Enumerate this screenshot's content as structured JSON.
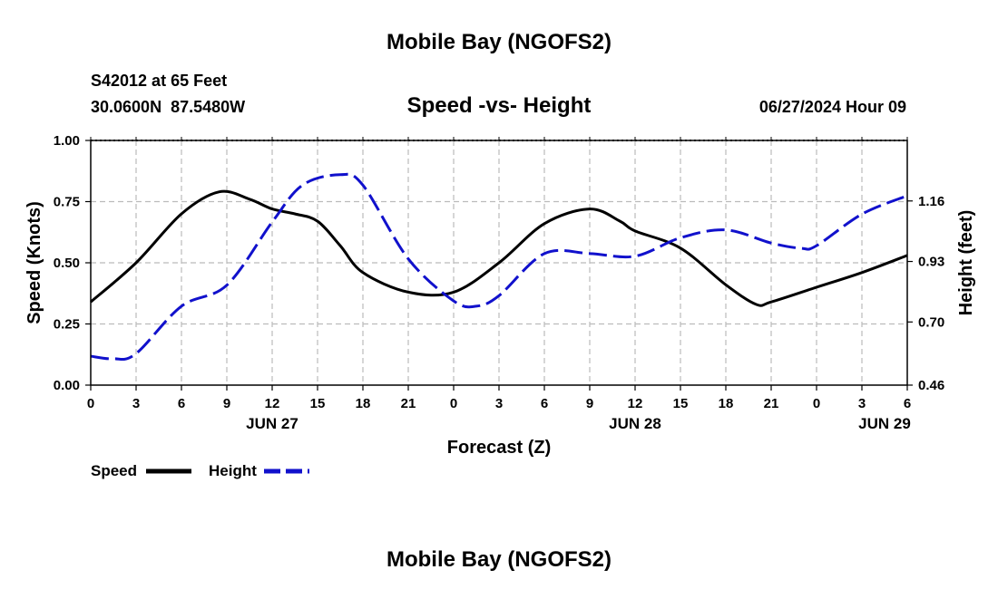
{
  "chart_data": {
    "type": "line",
    "title": "Mobile Bay (NGOFS2)",
    "subtitle": "Speed -vs- Height",
    "station": "S42012 at 65 Feet",
    "coords": "30.0600N  87.5480W",
    "datetime": "06/27/2024 Hour 09",
    "footer_title": "Mobile Bay (NGOFS2)",
    "xlabel": "Forecast (Z)",
    "ylabel_left": "Speed (Knots)",
    "ylabel_right": "Height (feet)",
    "x_range_hours": [
      0,
      54
    ],
    "ylim_left": [
      0,
      1
    ],
    "ylim_right": [
      0.46,
      1.39
    ],
    "x_tick_labels": [
      "0",
      "3",
      "6",
      "9",
      "12",
      "15",
      "18",
      "21",
      "0",
      "3",
      "6",
      "9",
      "12",
      "15",
      "18",
      "21",
      "0",
      "3",
      "6"
    ],
    "left_ticks": [
      {
        "value": 0.0,
        "label": "0.00"
      },
      {
        "value": 0.25,
        "label": "0.25"
      },
      {
        "value": 0.5,
        "label": "0.50"
      },
      {
        "value": 0.75,
        "label": "0.75"
      },
      {
        "value": 1.0,
        "label": "1.00"
      }
    ],
    "right_ticks": [
      {
        "value": 0.46,
        "label": "0.46"
      },
      {
        "value": 0.7,
        "label": "0.70"
      },
      {
        "value": 0.93,
        "label": "0.93"
      },
      {
        "value": 1.16,
        "label": "1.16"
      }
    ],
    "date_labels": [
      {
        "hour": 12,
        "label": "JUN 27"
      },
      {
        "hour": 36,
        "label": "JUN 28"
      },
      {
        "hour": 52.5,
        "label": "JUN 29"
      }
    ],
    "grid": true,
    "series": [
      {
        "name": "Speed",
        "axis": "left",
        "color": "#000000",
        "style": "solid",
        "x": [
          0,
          3,
          6,
          8.5,
          10.5,
          12,
          13.5,
          15,
          16.5,
          18,
          21,
          24,
          27,
          30,
          33,
          35,
          36,
          39,
          42,
          44,
          45,
          48,
          51,
          54
        ],
        "y": [
          0.34,
          0.5,
          0.7,
          0.79,
          0.76,
          0.72,
          0.7,
          0.67,
          0.57,
          0.46,
          0.38,
          0.38,
          0.5,
          0.66,
          0.72,
          0.67,
          0.63,
          0.56,
          0.41,
          0.33,
          0.34,
          0.4,
          0.46,
          0.53
        ]
      },
      {
        "name": "Height",
        "axis": "right",
        "color": "#1111cc",
        "style": "dashed",
        "x": [
          0,
          1.5,
          3,
          6,
          9,
          12,
          14,
          16.5,
          18,
          21,
          24,
          25.5,
          27,
          30,
          33,
          36,
          39,
          42,
          45,
          47,
          48,
          51,
          54
        ],
        "y": [
          0.57,
          0.56,
          0.58,
          0.76,
          0.84,
          1.08,
          1.22,
          1.26,
          1.22,
          0.94,
          0.78,
          0.76,
          0.8,
          0.96,
          0.96,
          0.95,
          1.02,
          1.05,
          1.0,
          0.98,
          0.99,
          1.11,
          1.18
        ]
      }
    ],
    "legend": [
      {
        "label": "Speed",
        "color": "#000000",
        "style": "solid"
      },
      {
        "label": "Height",
        "color": "#1111cc",
        "style": "dashed"
      }
    ]
  }
}
